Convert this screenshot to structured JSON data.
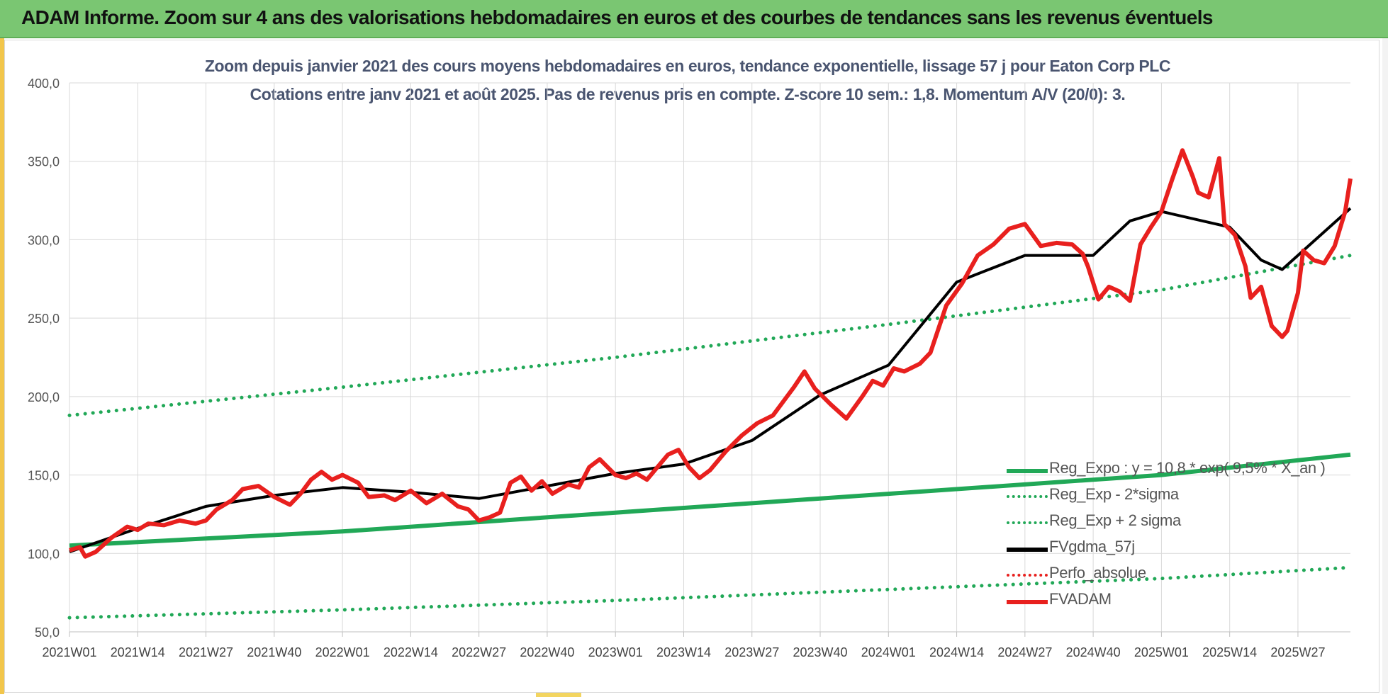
{
  "banner": {
    "title": "ADAM Informe. Zoom sur 4 ans des valorisations hebdomadaires en euros et des courbes de tendances sans les revenus éventuels"
  },
  "chart_data": {
    "type": "line",
    "title": "Zoom depuis janvier 2021 des cours moyens hebdomadaires en euros, tendance exponentielle, lissage 57 j pour Eaton Corp PLC",
    "subtitle": "Cotations entre janv 2021 et août 2025. Pas de revenus pris en compte. Z-score 10 sem.: 1,8. Momentum A/V (20/0): 3.",
    "xlabel": "",
    "ylabel": "",
    "ylim": [
      50,
      400
    ],
    "yticks": [
      "50,0",
      "100,0",
      "150,0",
      "200,0",
      "250,0",
      "300,0",
      "350,0",
      "400,0"
    ],
    "xticks": [
      "2021W01",
      "2021W14",
      "2021W27",
      "2021W40",
      "2022W01",
      "2022W14",
      "2022W27",
      "2022W40",
      "2023W01",
      "2023W14",
      "2023W27",
      "2023W40",
      "2024W01",
      "2024W14",
      "2024W27",
      "2024W40",
      "2025W01",
      "2025W14",
      "2025W27"
    ],
    "x_week_range": [
      0,
      244
    ],
    "grid": "vertical and horizontal",
    "legend_position": "bottom-right",
    "series": [
      {
        "name": "Reg_Expo : y = 10,8 * exp( 9,5% * X_an )",
        "color": "#21a857",
        "style": "solid",
        "x": [
          0,
          52,
          104,
          156,
          208,
          244
        ],
        "values": [
          105,
          114,
          126,
          138,
          150,
          163
        ]
      },
      {
        "name": "Reg_Exp - 2*sigma",
        "color": "#21a857",
        "style": "dotted",
        "x": [
          0,
          52,
          104,
          156,
          208,
          244
        ],
        "values": [
          59,
          64,
          70,
          77,
          84,
          91
        ]
      },
      {
        "name": "Reg_Exp + 2 sigma",
        "color": "#21a857",
        "style": "dotted",
        "x": [
          0,
          52,
          104,
          156,
          208,
          244
        ],
        "values": [
          188,
          206,
          225,
          246,
          268,
          290
        ]
      },
      {
        "name": "FVgdma_57j",
        "color": "#000000",
        "style": "solid",
        "x": [
          0,
          13,
          26,
          39,
          52,
          65,
          78,
          91,
          104,
          117,
          130,
          143,
          156,
          169,
          182,
          195,
          202,
          208,
          221,
          227,
          231,
          244
        ],
        "values": [
          101,
          116,
          130,
          137,
          142,
          139,
          135,
          143,
          151,
          157,
          172,
          201,
          220,
          273,
          290,
          290,
          312,
          318,
          308,
          287,
          281,
          320
        ]
      },
      {
        "name": "Perfo_absolue",
        "color": "#e8201e",
        "style": "dotted",
        "x": [],
        "values": []
      },
      {
        "name": "FVADAM",
        "color": "#e8201e",
        "style": "solid",
        "x": [
          0,
          2,
          3,
          5,
          8,
          11,
          13,
          15,
          18,
          21,
          24,
          26,
          28,
          31,
          33,
          36,
          39,
          42,
          44,
          46,
          48,
          50,
          52,
          55,
          57,
          60,
          62,
          65,
          68,
          71,
          74,
          76,
          78,
          80,
          82,
          84,
          86,
          88,
          90,
          92,
          95,
          97,
          99,
          101,
          104,
          106,
          108,
          110,
          112,
          114,
          116,
          118,
          120,
          122,
          125,
          128,
          131,
          134,
          136,
          138,
          140,
          142,
          145,
          148,
          151,
          153,
          155,
          157,
          159,
          162,
          164,
          167,
          170,
          173,
          176,
          179,
          182,
          185,
          188,
          191,
          193,
          194,
          196,
          198,
          200,
          202,
          204,
          206,
          208,
          210,
          212,
          214,
          215,
          217,
          219,
          220,
          222,
          224,
          225,
          227,
          229,
          231,
          232,
          234,
          235,
          237,
          239,
          241,
          243,
          244
        ],
        "values": [
          102,
          104,
          98,
          101,
          110,
          117,
          115,
          119,
          118,
          121,
          119,
          121,
          128,
          134,
          141,
          143,
          136,
          131,
          138,
          147,
          152,
          147,
          150,
          145,
          136,
          137,
          134,
          140,
          132,
          138,
          130,
          128,
          121,
          123,
          126,
          145,
          149,
          140,
          146,
          138,
          144,
          142,
          155,
          160,
          150,
          148,
          151,
          147,
          155,
          163,
          166,
          155,
          148,
          153,
          165,
          175,
          183,
          188,
          197,
          206,
          216,
          205,
          195,
          186,
          200,
          210,
          207,
          218,
          216,
          221,
          228,
          258,
          272,
          290,
          297,
          307,
          310,
          296,
          298,
          297,
          291,
          283,
          262,
          270,
          267,
          261,
          297,
          308,
          318,
          338,
          357,
          340,
          330,
          327,
          352,
          310,
          303,
          283,
          263,
          270,
          245,
          238,
          242,
          266,
          293,
          287,
          285,
          296,
          318,
          339
        ]
      }
    ]
  }
}
